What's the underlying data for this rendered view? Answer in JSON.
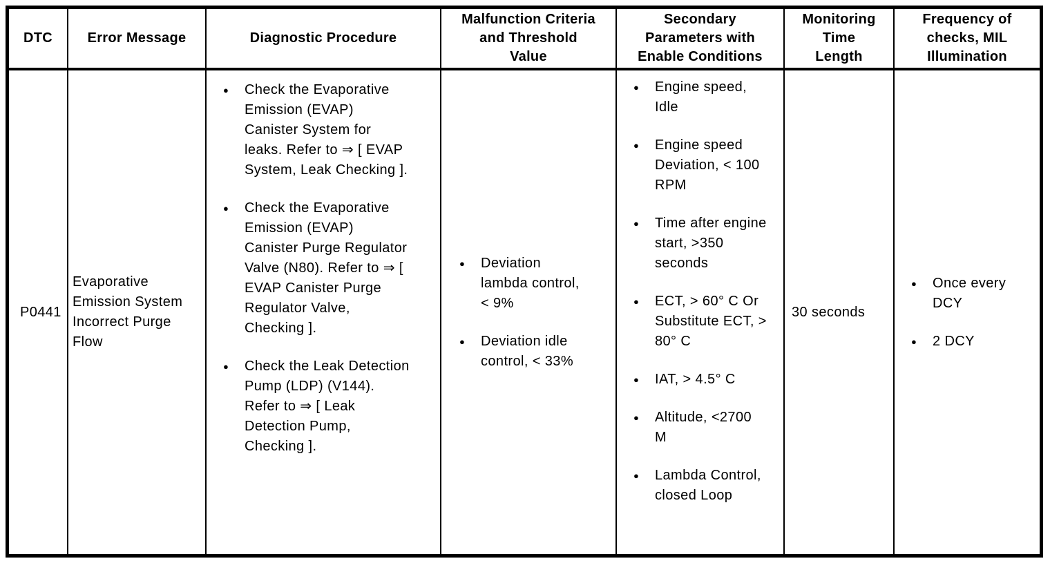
{
  "icons": {
    "bullet": "●"
  },
  "colors": {
    "border": "#000000",
    "text": "#000000",
    "background": "#ffffff"
  },
  "table": {
    "columns": [
      {
        "label": "DTC"
      },
      {
        "label": "Error Message"
      },
      {
        "label": "Diagnostic Procedure"
      },
      {
        "label": "Malfunction Criteria\nand Threshold\nValue"
      },
      {
        "label": "Secondary\nParameters with\nEnable Conditions"
      },
      {
        "label": "Monitoring\nTime\nLength"
      },
      {
        "label": "Frequency of\nchecks, MIL\nIllumination"
      }
    ],
    "rows": [
      {
        "dtc": "P0441",
        "error_message": "Evaporative Emission System Incorrect Purge Flow",
        "diagnostic_procedure": [
          "Check the Evaporative Emission (EVAP) Canister System for leaks. Refer to ⇒ [ EVAP System, Leak Checking ].",
          "Check the Evaporative Emission (EVAP) Canister Purge Regulator Valve (N80). Refer to ⇒ [ EVAP Canister Purge Regulator Valve, Checking ].",
          "Check the Leak Detection Pump (LDP) (V144). Refer to ⇒ [ Leak Detection Pump, Checking ]."
        ],
        "malfunction_criteria": [
          "Deviation lambda control, < 9%",
          "Deviation idle control, < 33%"
        ],
        "secondary_parameters": [
          "Engine speed, Idle",
          "Engine speed Deviation, < 100 RPM",
          "Time after engine start, >350 seconds",
          "ECT, > 60° C Or Substitute ECT, > 80° C",
          "IAT, > 4.5° C",
          "Altitude, <2700 M",
          "Lambda Control, closed Loop"
        ],
        "monitoring_time": "30 seconds",
        "frequency_of_checks": [
          "Once every DCY",
          "2 DCY"
        ]
      }
    ]
  }
}
